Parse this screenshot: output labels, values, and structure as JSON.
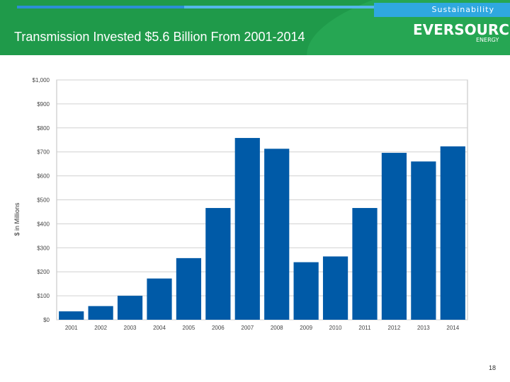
{
  "header": {
    "title": "Transmission Invested $5.6 Billion From 2001-2014",
    "tag": "Sustainability",
    "logo_text": "EVERSOURCE",
    "logo_sub": "ENERGY"
  },
  "page_number": "18",
  "colors": {
    "header_green": "#1f9a4a",
    "tag_blue": "#2fa8e0",
    "bar": "#005aa7"
  },
  "chart_data": {
    "type": "bar",
    "title": "",
    "xlabel": "",
    "ylabel": "$ in Millions",
    "categories": [
      "2001",
      "2002",
      "2003",
      "2004",
      "2005",
      "2006",
      "2007",
      "2008",
      "2009",
      "2010",
      "2011",
      "2012",
      "2013",
      "2014"
    ],
    "values": [
      35,
      57,
      100,
      172,
      257,
      466,
      758,
      713,
      240,
      264,
      466,
      696,
      660,
      723
    ],
    "ylim": [
      0,
      1000
    ],
    "yticks": [
      0,
      100,
      200,
      300,
      400,
      500,
      600,
      700,
      800,
      900,
      1000
    ],
    "ytick_labels": [
      "$0",
      "$100",
      "$200",
      "$300",
      "$400",
      "$500",
      "$600",
      "$700",
      "$800",
      "$900",
      "$1,000"
    ],
    "grid": true,
    "legend": "none"
  }
}
